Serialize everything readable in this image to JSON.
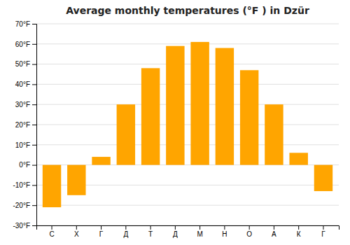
{
  "chart_data": {
    "type": "bar",
    "title": "Average monthly temperatures (°F ) in Dzür",
    "categories": [
      "С",
      "Х",
      "Г",
      "Д",
      "Т",
      "Д",
      "М",
      "Н",
      "О",
      "А",
      "К",
      "Г"
    ],
    "values": [
      -21,
      -15,
      4,
      30,
      48,
      59,
      61,
      58,
      47,
      30,
      6,
      -13
    ],
    "color": "#FFA500",
    "ylim": [
      -30,
      70
    ],
    "yticks": [
      {
        "value": -30,
        "label": "-30°F"
      },
      {
        "value": -20,
        "label": "-20°F"
      },
      {
        "value": -10,
        "label": "-10°F"
      },
      {
        "value": 0,
        "label": "0°F"
      },
      {
        "value": 10,
        "label": "10°F"
      },
      {
        "value": 20,
        "label": "20°F"
      },
      {
        "value": 30,
        "label": "30°F"
      },
      {
        "value": 40,
        "label": "40°F"
      },
      {
        "value": 50,
        "label": "50°F"
      },
      {
        "value": 60,
        "label": "60°F"
      },
      {
        "value": 70,
        "label": "70°F"
      }
    ],
    "grid": true
  }
}
